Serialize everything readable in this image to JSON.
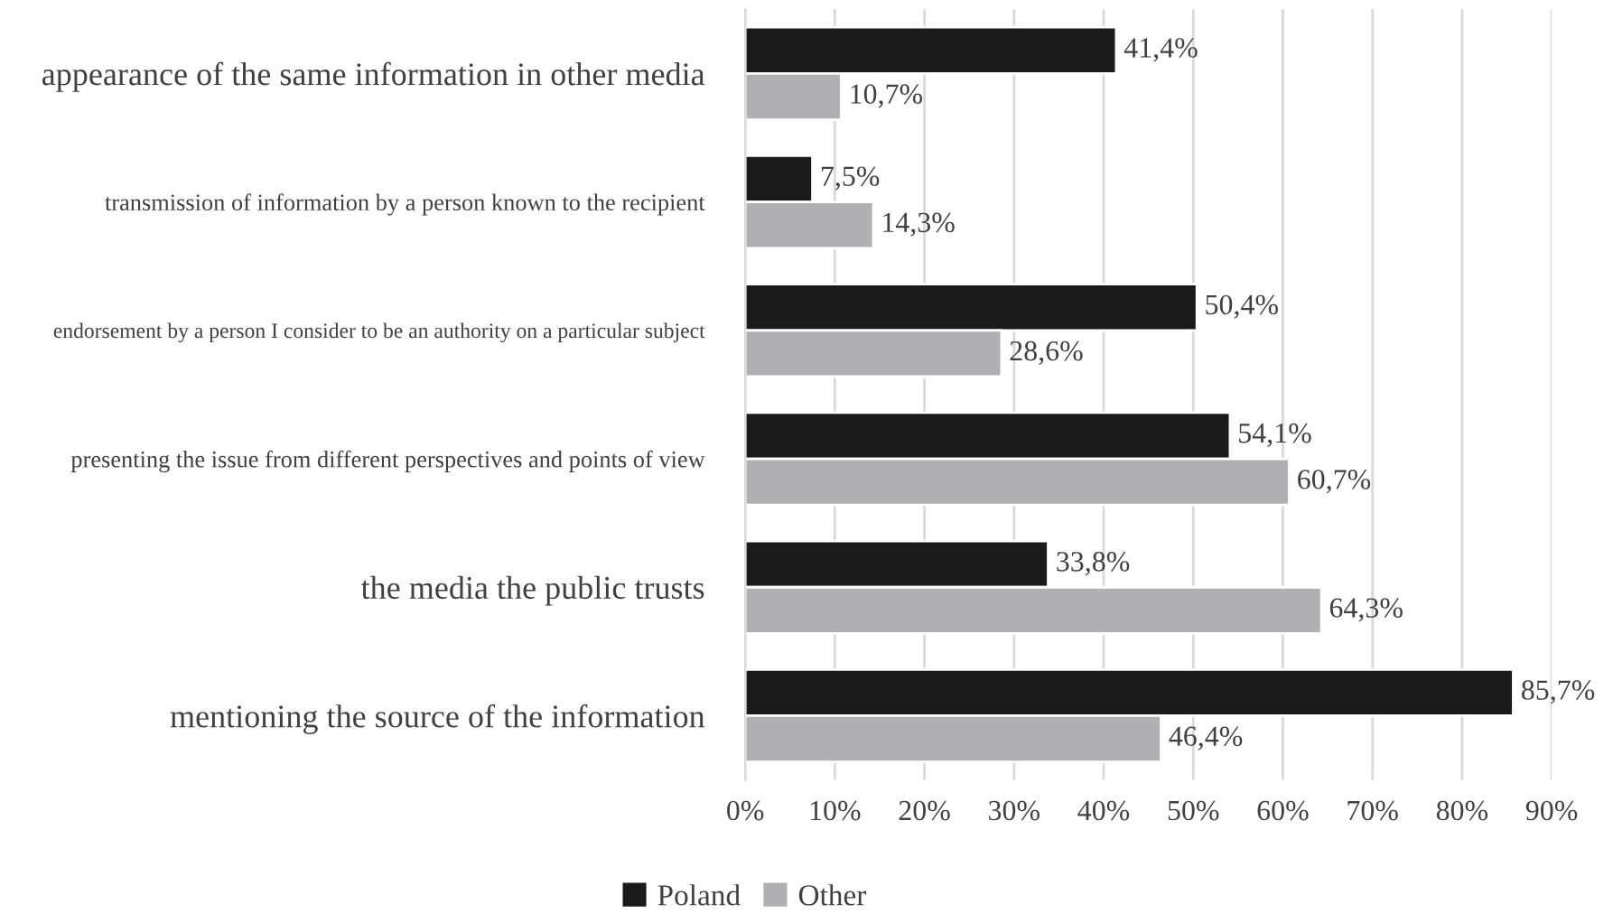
{
  "chart_data": {
    "type": "bar",
    "orientation": "horizontal",
    "categories": [
      "appearance of the same information in other media",
      "transmission of information by a person known to the recipient",
      "endorsement by a person I consider to be an authority on a particular subject",
      "presenting the issue from different perspectives and points of view",
      "the media the public trusts",
      "mentioning the source of the information"
    ],
    "series": [
      {
        "name": "Poland",
        "color": "#1a1a1a",
        "values": [
          41.4,
          7.5,
          50.4,
          54.1,
          33.8,
          85.7
        ],
        "value_labels": [
          "41,4%",
          "7,5%",
          "50,4%",
          "54,1%",
          "33,8%",
          "85,7%"
        ]
      },
      {
        "name": "Other",
        "color": "#b0b0b2",
        "values": [
          10.7,
          14.3,
          28.6,
          60.7,
          64.3,
          46.4
        ],
        "value_labels": [
          "10,7%",
          "14,3%",
          "28,6%",
          "60,7%",
          "64,3%",
          "46,4%"
        ]
      }
    ],
    "xlim": [
      0,
      90
    ],
    "xticks": [
      {
        "value": 0,
        "label": "0%"
      },
      {
        "value": 10,
        "label": "10%"
      },
      {
        "value": 20,
        "label": "20%"
      },
      {
        "value": 30,
        "label": "30%"
      },
      {
        "value": 40,
        "label": "40%"
      },
      {
        "value": 50,
        "label": "50%"
      },
      {
        "value": 60,
        "label": "60%"
      },
      {
        "value": 70,
        "label": "70%"
      },
      {
        "value": 80,
        "label": "80%"
      },
      {
        "value": 90,
        "label": "90%"
      }
    ],
    "grid": "x",
    "legend": "bottom"
  }
}
